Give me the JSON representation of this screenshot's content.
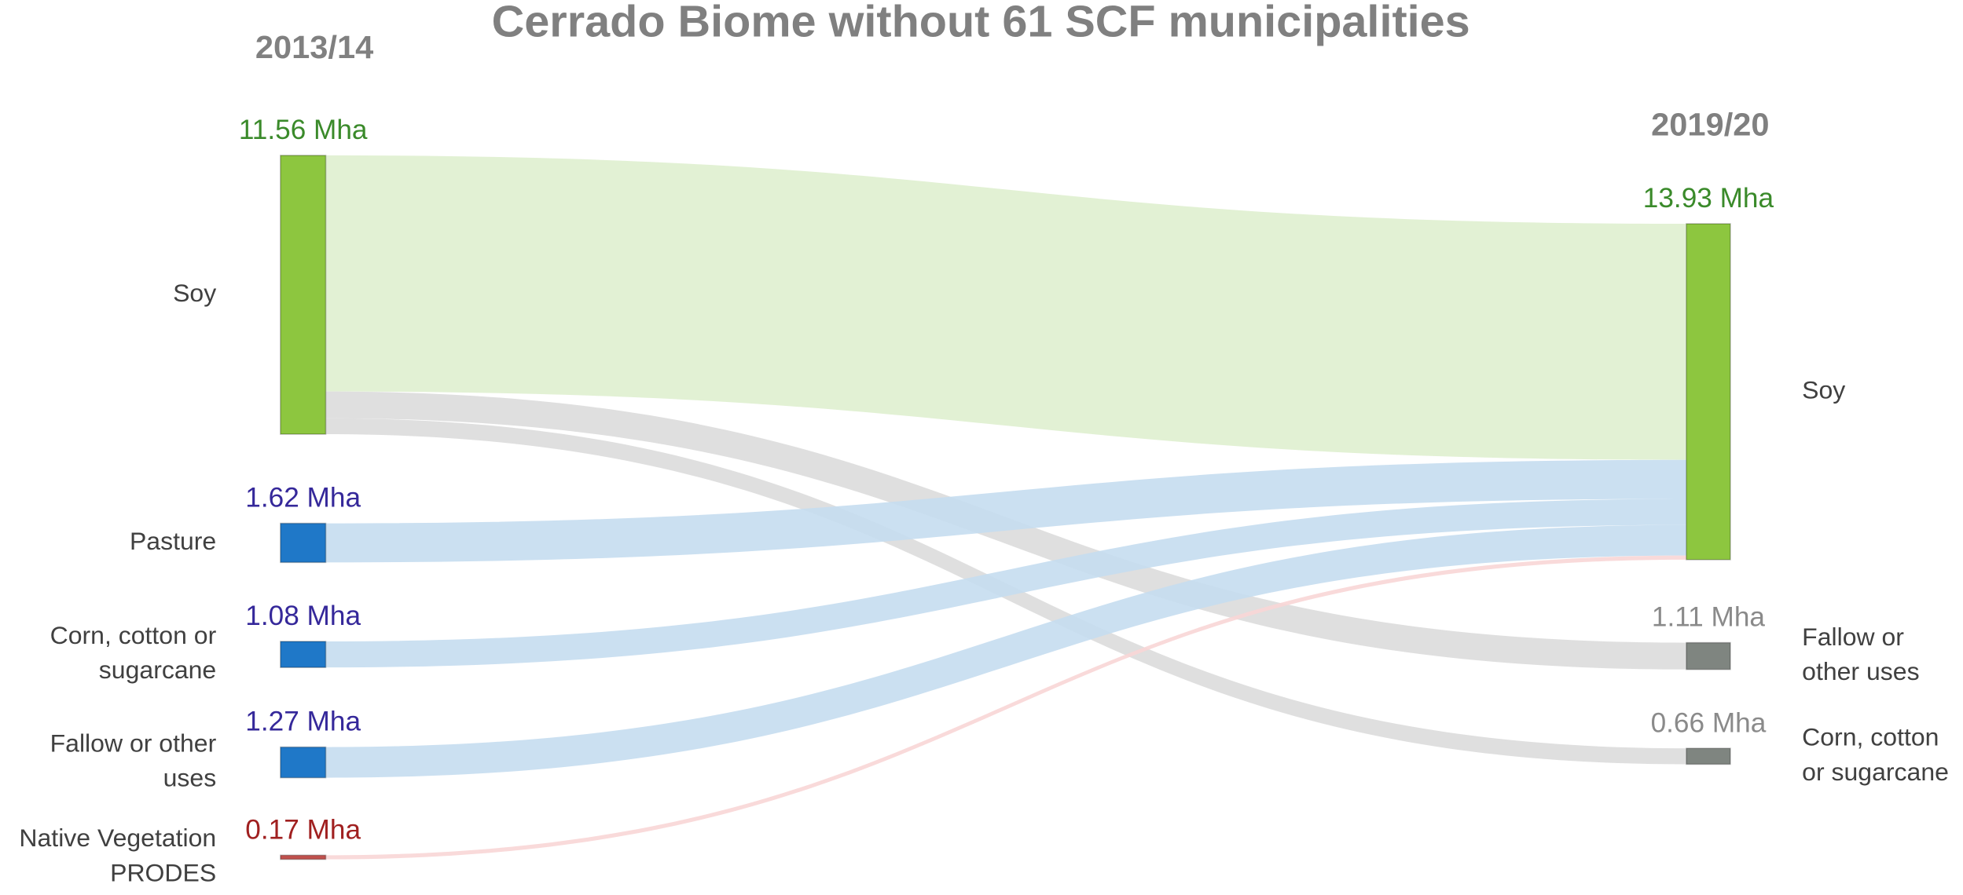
{
  "chart_data": {
    "type": "sankey",
    "title": "Cerrado Biome without 61 SCF municipalities",
    "columns": [
      {
        "title": "2013/14",
        "nodes": [
          {
            "label": [
              "Soy"
            ],
            "value": 11.56,
            "value_label": "11.56 Mha",
            "color": "#8dc63f",
            "flow_color": "#dff0cf",
            "label_color": "#3a8a2a"
          },
          {
            "label": [
              "Pasture"
            ],
            "value": 1.62,
            "value_label": "1.62 Mha",
            "color": "#1f78c8",
            "flow_color": "#c5ddef",
            "label_color": "#35289a"
          },
          {
            "label": [
              "Corn, cotton or",
              "sugarcane"
            ],
            "value": 1.08,
            "value_label": "1.08 Mha",
            "color": "#1f78c8",
            "flow_color": "#c5ddef",
            "label_color": "#35289a"
          },
          {
            "label": [
              "Fallow or other",
              "uses"
            ],
            "value": 1.27,
            "value_label": "1.27 Mha",
            "color": "#1f78c8",
            "flow_color": "#c5ddef",
            "label_color": "#35289a"
          },
          {
            "label": [
              "Native Vegetation",
              "PRODES"
            ],
            "value": 0.17,
            "value_label": "0.17 Mha",
            "color": "#c0504d",
            "flow_color": "#f8d6d6",
            "label_color": "#a02020"
          }
        ]
      },
      {
        "title": "2019/20",
        "nodes": [
          {
            "label": [
              "Soy"
            ],
            "value": 13.93,
            "value_label": "13.93 Mha",
            "color": "#8dc63f",
            "label_color": "#3a8a2a"
          },
          {
            "label": [
              "Fallow or",
              "other uses"
            ],
            "value": 1.11,
            "value_label": "1.11 Mha",
            "color": "#7f8580",
            "label_color": "#8a8a8a"
          },
          {
            "label": [
              "Corn, cotton",
              "or sugarcane"
            ],
            "value": 0.66,
            "value_label": "0.66 Mha",
            "color": "#7f8580",
            "label_color": "#8a8a8a"
          }
        ]
      }
    ],
    "links": [
      {
        "source": 0,
        "target": 0,
        "value": 9.79,
        "color": "#dff0cf"
      },
      {
        "source": 0,
        "target": 1,
        "value": 1.11,
        "color": "#dcdcdc"
      },
      {
        "source": 0,
        "target": 2,
        "value": 0.66,
        "color": "#dcdcdc"
      },
      {
        "source": 1,
        "target": 0,
        "value": 1.62,
        "color": "#c5ddef"
      },
      {
        "source": 2,
        "target": 0,
        "value": 1.08,
        "color": "#c5ddef"
      },
      {
        "source": 3,
        "target": 0,
        "value": 1.27,
        "color": "#c5ddef"
      },
      {
        "source": 4,
        "target": 0,
        "value": 0.17,
        "color": "#f8d6d6"
      }
    ]
  }
}
